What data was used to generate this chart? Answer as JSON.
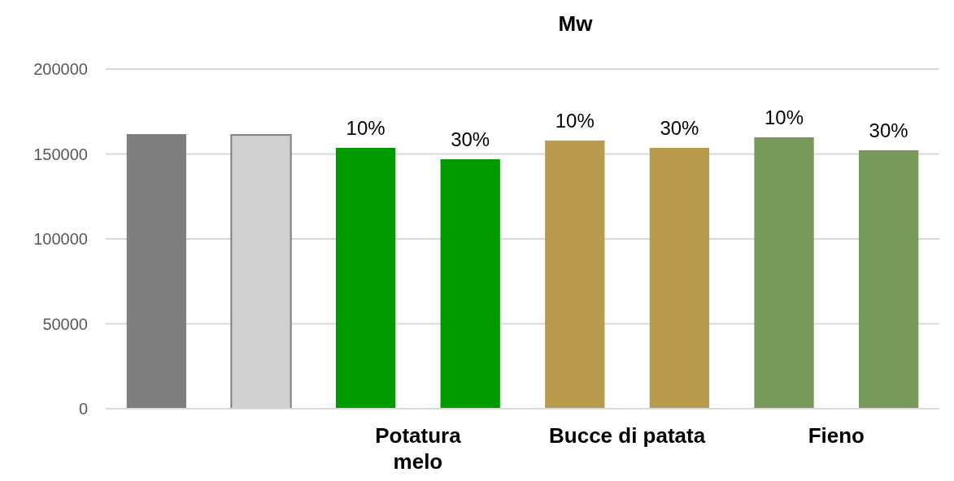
{
  "chart_data": {
    "type": "bar",
    "title": "Mw",
    "categories": [
      null,
      null,
      "10%",
      "30%",
      "10%",
      "30%",
      "10%",
      "30%"
    ],
    "values": [
      161700,
      161200,
      153600,
      146900,
      157900,
      153600,
      159800,
      152200
    ],
    "colors": [
      "#7f7f7f",
      "#d0d0d0",
      "#009900",
      "#009900",
      "#b89b4c",
      "#b89b4c",
      "#77995c",
      "#77995c"
    ],
    "ylim": [
      0,
      200000
    ],
    "yticks": [
      0,
      50000,
      100000,
      150000,
      200000
    ],
    "grid": "y",
    "annotations": [
      "Potatura melo",
      "Bucce di patata",
      "Fieno"
    ]
  }
}
